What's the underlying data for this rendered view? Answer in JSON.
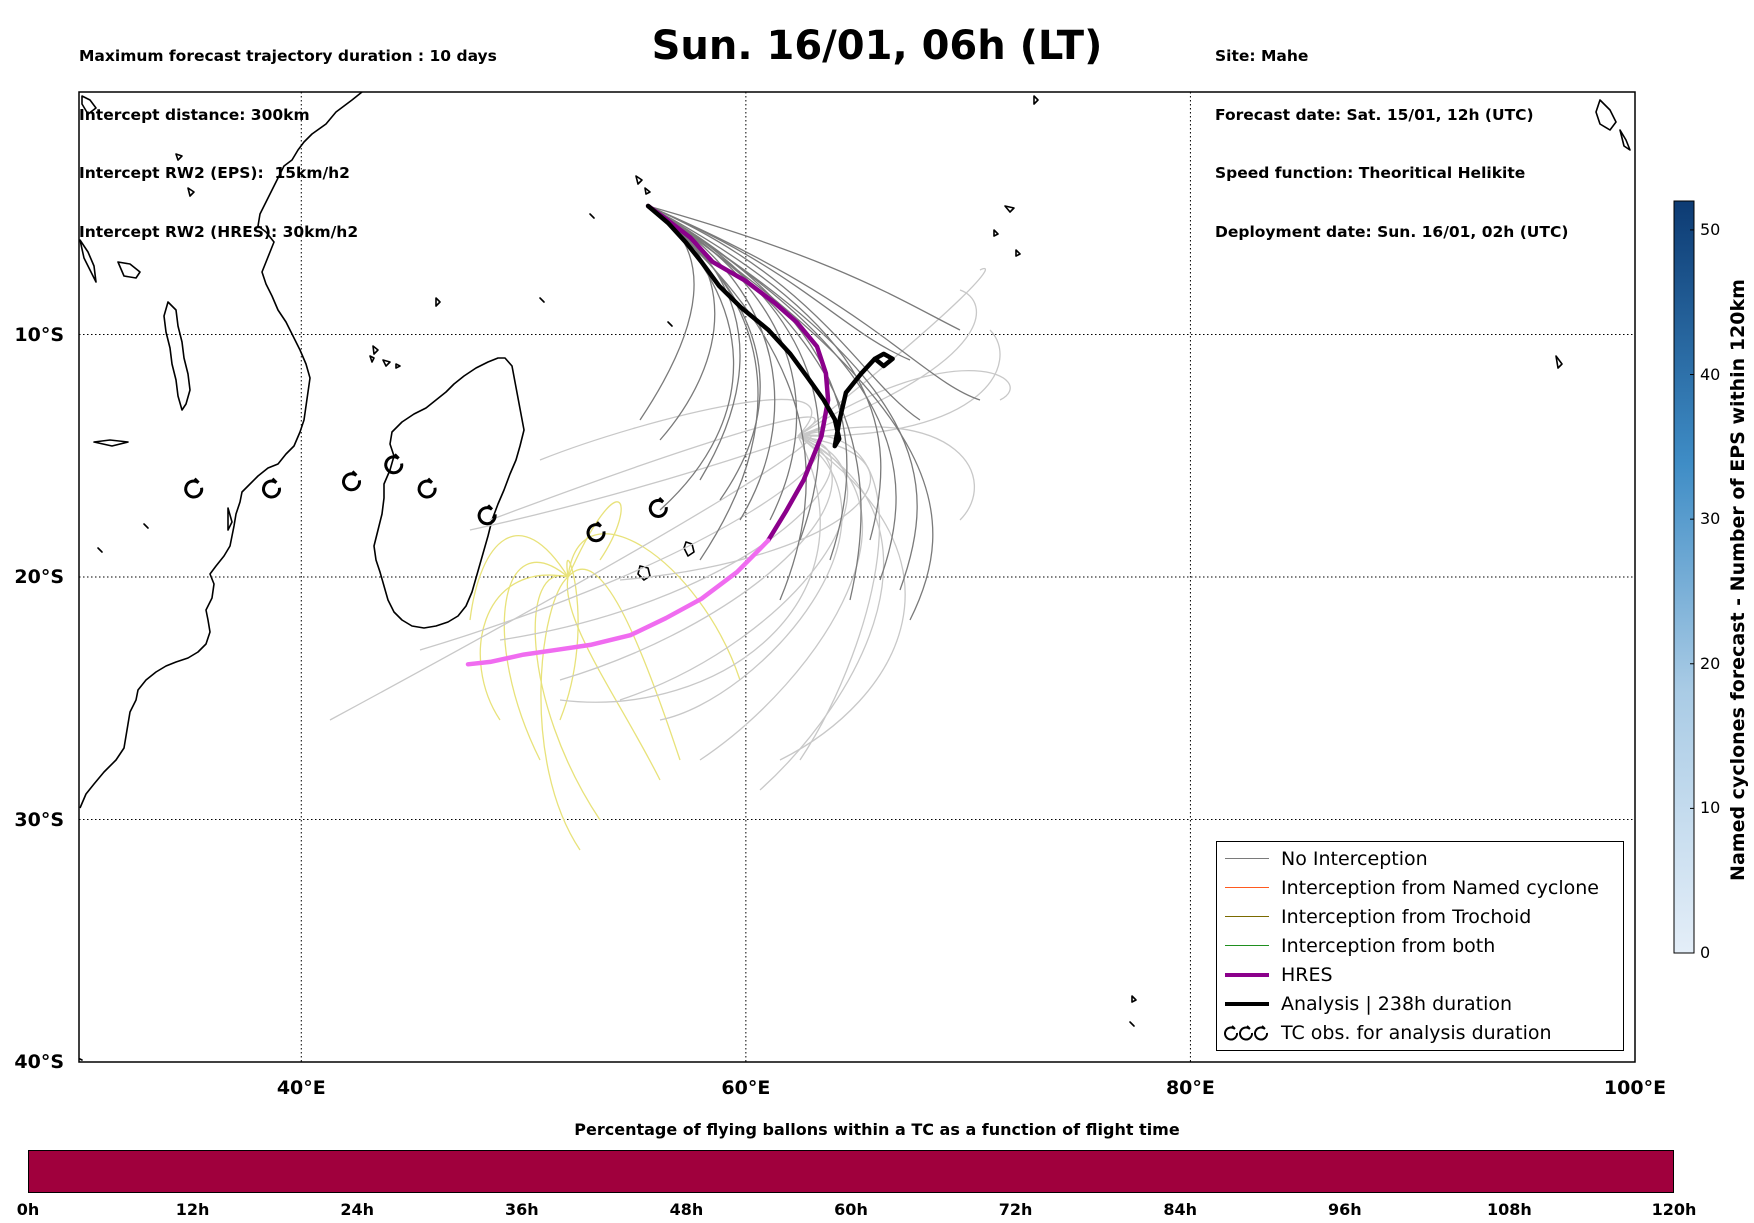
{
  "header_left": [
    "Maximum forecast trajectory duration : 10 days",
    "Intercept distance: 300km",
    "Intercept RW2 (EPS):  15km/h2",
    "Intercept RW2 (HRES): 30km/h2"
  ],
  "header_right": [
    "Site: Mahe",
    "Forecast date: Sat. 15/01, 12h (UTC)",
    "Speed function: Theoritical Helikite",
    "Deployment date: Sun. 16/01, 02h (UTC)"
  ],
  "title": "Sun. 16/01, 06h (LT)",
  "map": {
    "lon_range": [
      30,
      100
    ],
    "lat_range": [
      0,
      -40
    ],
    "lat_labels": [
      {
        "lat": -10,
        "text": "10°S"
      },
      {
        "lat": -20,
        "text": "20°S"
      },
      {
        "lat": -30,
        "text": "30°S"
      },
      {
        "lat": -40,
        "text": "40°S"
      }
    ],
    "lon_labels": [
      {
        "lon": 40,
        "text": "40°E"
      },
      {
        "lon": 60,
        "text": "60°E"
      },
      {
        "lon": 80,
        "text": "80°E"
      },
      {
        "lon": 100,
        "text": "100°E"
      }
    ],
    "gridlines": "dotted",
    "colors": {
      "no_interception": "#7a7a7a",
      "light_members": "#c8c8c8",
      "trochoid_tracks": "#e8e27a",
      "named_cyclone": "#ff5a1f",
      "trochoid": "#7a6a00",
      "both": "#1f8f1f",
      "hres": "#8b008b",
      "hres_late": "#f06cf0",
      "analysis": "#000000"
    },
    "hres_track": [
      [
        55.6,
        -4.7
      ],
      [
        56.5,
        -5.3
      ],
      [
        57.5,
        -6
      ],
      [
        58.5,
        -7
      ],
      [
        60,
        -7.8
      ],
      [
        61.3,
        -8.7
      ],
      [
        62.3,
        -9.5
      ],
      [
        63.2,
        -10.5
      ],
      [
        63.6,
        -11.6
      ],
      [
        63.7,
        -12.7
      ],
      [
        63.4,
        -14.2
      ],
      [
        62.6,
        -16
      ],
      [
        61.8,
        -17.3
      ],
      [
        61,
        -18.5
      ],
      [
        59.6,
        -19.8
      ],
      [
        58,
        -20.9
      ],
      [
        56.4,
        -21.7
      ],
      [
        54.8,
        -22.4
      ],
      [
        53,
        -22.8
      ],
      [
        51.5,
        -23
      ],
      [
        50,
        -23.2
      ],
      [
        48.5,
        -23.5
      ],
      [
        47.5,
        -23.6
      ]
    ],
    "analysis_track": [
      [
        55.6,
        -4.7
      ],
      [
        56.5,
        -5.4
      ],
      [
        57.3,
        -6.2
      ],
      [
        58,
        -7
      ],
      [
        58.8,
        -8
      ],
      [
        59.8,
        -8.9
      ],
      [
        61,
        -9.8
      ],
      [
        62,
        -10.8
      ],
      [
        62.8,
        -11.8
      ],
      [
        63.5,
        -12.7
      ],
      [
        64,
        -13.5
      ],
      [
        64.2,
        -14.3
      ],
      [
        64.0,
        -14.6
      ],
      [
        64.2,
        -13.6
      ],
      [
        64.5,
        -12.4
      ],
      [
        65.2,
        -11.6
      ],
      [
        65.8,
        -11.0
      ],
      [
        66.2,
        -10.8
      ],
      [
        66.6,
        -11.0
      ],
      [
        66.2,
        -11.3
      ],
      [
        65.8,
        -11.0
      ]
    ],
    "tc_obs": [
      [
        35.2,
        -16.4
      ],
      [
        38.7,
        -16.4
      ],
      [
        42.3,
        -16.1
      ],
      [
        44.2,
        -15.4
      ],
      [
        45.7,
        -16.4
      ],
      [
        48.4,
        -17.5
      ],
      [
        53.3,
        -18.2
      ],
      [
        56.1,
        -17.2
      ]
    ]
  },
  "legend": [
    {
      "label": "No Interception",
      "color": "#7a7a7a",
      "width": 1.2,
      "icon": "line"
    },
    {
      "label": "Interception from Named cyclone",
      "color": "#ff5a1f",
      "width": 1.2,
      "icon": "line"
    },
    {
      "label": "Interception from Trochoid",
      "color": "#7a6a00",
      "width": 1.2,
      "icon": "line"
    },
    {
      "label": "Interception from both",
      "color": "#1f8f1f",
      "width": 1.2,
      "icon": "line"
    },
    {
      "label": "HRES",
      "color": "#8b008b",
      "width": 4,
      "icon": "line"
    },
    {
      "label": "Analysis | 238h duration",
      "color": "#000000",
      "width": 4,
      "icon": "line"
    },
    {
      "label": "TC obs. for analysis duration",
      "color": "#000000",
      "width": 2,
      "icon": "cyclone-symbols"
    }
  ],
  "colorbar_vertical": {
    "title": "Named cyclones forecast - Number of EPS within 120km",
    "ticks": [
      "50",
      "40",
      "30",
      "20",
      "10",
      "0"
    ],
    "range": [
      0,
      52
    ],
    "colors": [
      "#e4eef8",
      "#0d3b73"
    ]
  },
  "colorbar_horizontal": {
    "title": "Percentage of flying ballons within a TC as a function of flight time",
    "labels": [
      "0h",
      "12h",
      "24h",
      "36h",
      "48h",
      "60h",
      "72h",
      "84h",
      "96h",
      "108h",
      "120h"
    ],
    "color": "#a0003d"
  }
}
